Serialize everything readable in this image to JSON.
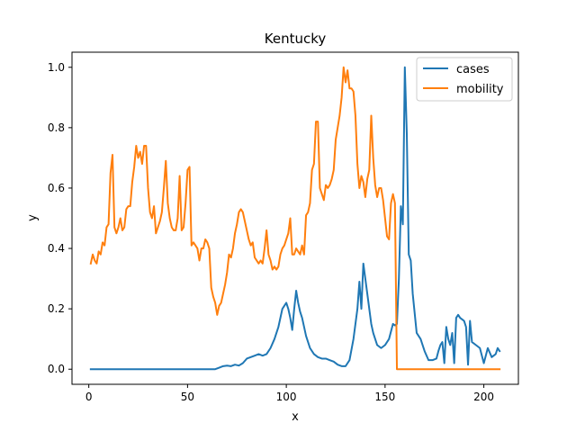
{
  "chart_data": {
    "type": "line",
    "title": "Kentucky",
    "xlabel": "x",
    "ylabel": "y",
    "xlim": [
      -8.5,
      217.5
    ],
    "ylim": [
      -0.05,
      1.05
    ],
    "xticks": [
      0,
      50,
      100,
      150,
      200
    ],
    "yticks": [
      0.0,
      0.2,
      0.4,
      0.6,
      0.8,
      1.0
    ],
    "xtick_labels": [
      "0",
      "50",
      "100",
      "150",
      "200"
    ],
    "ytick_labels": [
      "0.0",
      "0.2",
      "0.4",
      "0.6",
      "0.8",
      "1.0"
    ],
    "grid": false,
    "legend": "top-right",
    "series": [
      {
        "name": "cases",
        "color": "#1f77b4",
        "x": [
          1,
          10,
          20,
          30,
          40,
          50,
          60,
          64,
          66,
          68,
          70,
          72,
          74,
          76,
          78,
          80,
          82,
          84,
          86,
          88,
          90,
          92,
          94,
          96,
          98,
          100,
          101,
          102,
          103,
          104,
          105,
          106,
          107,
          108,
          110,
          112,
          114,
          116,
          118,
          120,
          122,
          124,
          126,
          128,
          130,
          132,
          134,
          136,
          137,
          138,
          139,
          140,
          141,
          142,
          143,
          144,
          146,
          148,
          150,
          152,
          154,
          155,
          156,
          157,
          158,
          159,
          160,
          161,
          162,
          163,
          164,
          166,
          168,
          170,
          172,
          174,
          176,
          177,
          178,
          179,
          180,
          181,
          182,
          183,
          184,
          185,
          186,
          187,
          188,
          190,
          191,
          192,
          193,
          194,
          196,
          198,
          200,
          202,
          204,
          206,
          207,
          208
        ],
        "y": [
          0,
          0,
          0,
          0,
          0,
          0,
          0,
          0,
          0.005,
          0.01,
          0.012,
          0.01,
          0.015,
          0.012,
          0.02,
          0.035,
          0.04,
          0.045,
          0.05,
          0.045,
          0.05,
          0.07,
          0.1,
          0.14,
          0.2,
          0.22,
          0.2,
          0.17,
          0.13,
          0.2,
          0.26,
          0.22,
          0.19,
          0.17,
          0.11,
          0.07,
          0.05,
          0.04,
          0.035,
          0.035,
          0.03,
          0.025,
          0.015,
          0.01,
          0.01,
          0.03,
          0.1,
          0.2,
          0.29,
          0.2,
          0.35,
          0.3,
          0.25,
          0.2,
          0.15,
          0.12,
          0.08,
          0.07,
          0.08,
          0.1,
          0.15,
          0.145,
          0.15,
          0.3,
          0.54,
          0.48,
          1.0,
          0.78,
          0.38,
          0.36,
          0.25,
          0.12,
          0.1,
          0.06,
          0.03,
          0.03,
          0.035,
          0.06,
          0.08,
          0.09,
          0.02,
          0.14,
          0.1,
          0.08,
          0.12,
          0.02,
          0.17,
          0.18,
          0.17,
          0.16,
          0.14,
          0.015,
          0.16,
          0.09,
          0.08,
          0.07,
          0.02,
          0.07,
          0.04,
          0.05,
          0.07,
          0.06
        ]
      },
      {
        "name": "mobility",
        "color": "#ff7f0e",
        "x": [
          1,
          2,
          3,
          4,
          5,
          6,
          7,
          8,
          9,
          10,
          11,
          12,
          13,
          14,
          15,
          16,
          17,
          18,
          19,
          20,
          21,
          22,
          23,
          24,
          25,
          26,
          27,
          28,
          29,
          30,
          31,
          32,
          33,
          34,
          35,
          36,
          37,
          38,
          39,
          40,
          41,
          42,
          43,
          44,
          45,
          46,
          47,
          48,
          49,
          50,
          51,
          52,
          53,
          54,
          55,
          56,
          57,
          58,
          59,
          60,
          61,
          62,
          63,
          64,
          65,
          66,
          67,
          68,
          69,
          70,
          71,
          72,
          73,
          74,
          75,
          76,
          77,
          78,
          79,
          80,
          81,
          82,
          83,
          84,
          85,
          86,
          87,
          88,
          89,
          90,
          91,
          92,
          93,
          94,
          95,
          96,
          97,
          98,
          99,
          100,
          101,
          102,
          103,
          104,
          105,
          106,
          107,
          108,
          109,
          110,
          111,
          112,
          113,
          114,
          115,
          116,
          117,
          118,
          119,
          120,
          121,
          122,
          123,
          124,
          125,
          126,
          127,
          128,
          129,
          130,
          131,
          132,
          133,
          134,
          135,
          136,
          137,
          138,
          139,
          140,
          141,
          142,
          143,
          144,
          145,
          146,
          147,
          148,
          149,
          150,
          151,
          152,
          153,
          154,
          155,
          156,
          157,
          158,
          159,
          160,
          161,
          162,
          163,
          164,
          165,
          166,
          167,
          168,
          169,
          170,
          171,
          172,
          173,
          174,
          175,
          176,
          177,
          178,
          179,
          180,
          181,
          182,
          183,
          184,
          185,
          186,
          187,
          188,
          189,
          190,
          191,
          192,
          193,
          194,
          195,
          196,
          197,
          198,
          199,
          200,
          201,
          202,
          203,
          204,
          205,
          206,
          207,
          208
        ],
        "y": [
          0.35,
          0.38,
          0.36,
          0.35,
          0.39,
          0.38,
          0.42,
          0.41,
          0.47,
          0.48,
          0.65,
          0.71,
          0.47,
          0.45,
          0.47,
          0.5,
          0.46,
          0.47,
          0.53,
          0.54,
          0.54,
          0.62,
          0.67,
          0.74,
          0.7,
          0.72,
          0.68,
          0.74,
          0.74,
          0.6,
          0.52,
          0.5,
          0.54,
          0.45,
          0.47,
          0.49,
          0.52,
          0.6,
          0.69,
          0.55,
          0.5,
          0.47,
          0.46,
          0.46,
          0.5,
          0.64,
          0.46,
          0.47,
          0.55,
          0.66,
          0.67,
          0.41,
          0.42,
          0.41,
          0.4,
          0.36,
          0.4,
          0.4,
          0.43,
          0.42,
          0.4,
          0.27,
          0.24,
          0.22,
          0.18,
          0.21,
          0.22,
          0.25,
          0.28,
          0.32,
          0.38,
          0.37,
          0.4,
          0.45,
          0.48,
          0.52,
          0.53,
          0.52,
          0.49,
          0.46,
          0.43,
          0.41,
          0.42,
          0.37,
          0.36,
          0.35,
          0.36,
          0.35,
          0.4,
          0.46,
          0.38,
          0.36,
          0.33,
          0.34,
          0.33,
          0.34,
          0.38,
          0.4,
          0.41,
          0.43,
          0.45,
          0.5,
          0.38,
          0.38,
          0.4,
          0.39,
          0.38,
          0.41,
          0.38,
          0.51,
          0.52,
          0.55,
          0.66,
          0.68,
          0.82,
          0.82,
          0.6,
          0.58,
          0.56,
          0.61,
          0.6,
          0.61,
          0.63,
          0.66,
          0.76,
          0.8,
          0.84,
          0.9,
          1.0,
          0.95,
          0.99,
          0.93,
          0.93,
          0.92,
          0.84,
          0.68,
          0.6,
          0.64,
          0.62,
          0.57,
          0.63,
          0.66,
          0.84,
          0.7,
          0.61,
          0.57,
          0.6,
          0.6,
          0.56,
          0.5,
          0.44,
          0.43,
          0.55,
          0.58,
          0.55,
          0.0,
          0.0,
          0.0,
          0.0,
          0.0,
          0.0,
          0.0,
          0.0,
          0.0,
          0.0,
          0.0,
          0.0,
          0.0,
          0.0,
          0.0,
          0.0,
          0.0,
          0.0,
          0.0,
          0.0,
          0.0,
          0.0,
          0.0,
          0.0,
          0.0,
          0.0,
          0.0,
          0.0,
          0.0,
          0.0,
          0.0,
          0.0,
          0.0,
          0.0,
          0.0,
          0.0,
          0.0,
          0.0,
          0.0,
          0.0,
          0.0,
          0.0,
          0.0,
          0.0,
          0.0,
          0.0,
          0.0,
          0.0,
          0.0,
          0.0,
          0.0,
          0.0,
          0.0
        ]
      }
    ]
  }
}
